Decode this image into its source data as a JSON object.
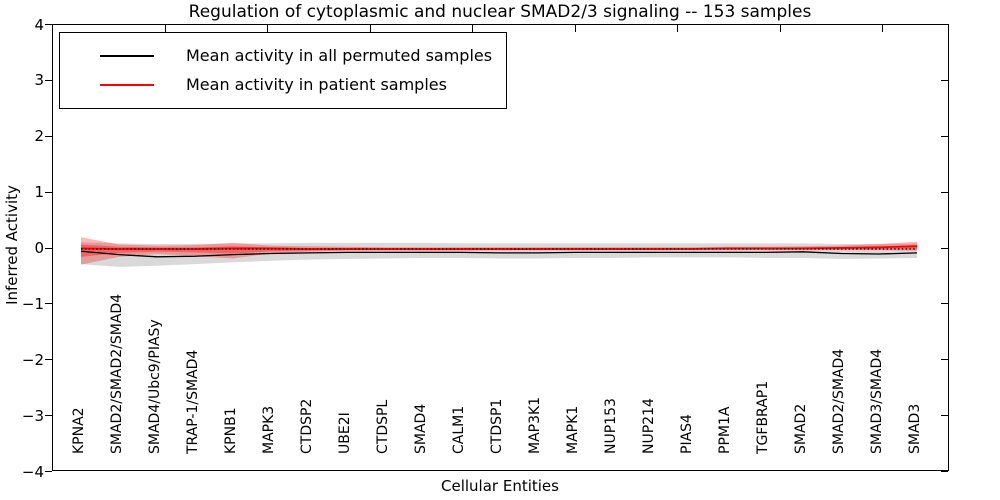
{
  "chart_data": {
    "type": "line",
    "title": "Regulation of cytoplasmic and nuclear SMAD2/3 signaling -- 153 samples",
    "xlabel": "Cellular Entities",
    "ylabel": "Inferred Activity",
    "ylim": [
      -4,
      4
    ],
    "ytick_values": [
      4,
      3,
      2,
      1,
      0,
      -1,
      -2,
      -3,
      -4
    ],
    "ytick_labels": [
      "4",
      "3",
      "2",
      "1",
      "0",
      "−1",
      "−2",
      "−3",
      "−4"
    ],
    "grid": false,
    "legend_position": "upper left",
    "categories": [
      "KPNA2",
      "SMAD2/SMAD2/SMAD4",
      "SMAD4/Ubc9/PIASy",
      "TRAP-1/SMAD4",
      "KPNB1",
      "MAPK3",
      "CTDSP2",
      "UBE2I",
      "CTDSPL",
      "SMAD4",
      "CALM1",
      "CTDSP1",
      "MAP3K1",
      "MAPK1",
      "NUP153",
      "NUP214",
      "PIAS4",
      "PPM1A",
      "TGFBRAP1",
      "SMAD2",
      "SMAD2/SMAD4",
      "SMAD3/SMAD4",
      "SMAD3"
    ],
    "series": [
      {
        "name": "Mean activity in all permuted samples",
        "color": "#000000",
        "line_width": 1.3,
        "values": [
          -0.04,
          -0.1,
          -0.14,
          -0.13,
          -0.1,
          -0.08,
          -0.07,
          -0.06,
          -0.06,
          -0.06,
          -0.06,
          -0.07,
          -0.07,
          -0.06,
          -0.06,
          -0.06,
          -0.06,
          -0.06,
          -0.06,
          -0.05,
          -0.08,
          -0.09,
          -0.07
        ]
      },
      {
        "name": "Mean activity in patient samples",
        "color": "#ff0000",
        "line_width": 1.8,
        "values": [
          0.01,
          0.0,
          0.0,
          0.0,
          0.01,
          0.01,
          0.0,
          0.0,
          0.0,
          0.0,
          0.0,
          0.0,
          0.0,
          0.0,
          0.0,
          0.0,
          0.0,
          0.01,
          0.01,
          0.01,
          0.02,
          0.03,
          0.05
        ]
      }
    ],
    "bands": [
      {
        "name": "permuted-samples-range",
        "color": "rgba(0,0,0,0.15)",
        "upper": [
          0.12,
          0.1,
          0.09,
          0.09,
          0.1,
          0.1,
          0.11,
          0.11,
          0.11,
          0.11,
          0.1,
          0.1,
          0.1,
          0.1,
          0.1,
          0.1,
          0.1,
          0.1,
          0.1,
          0.1,
          0.09,
          0.09,
          0.1
        ],
        "lower": [
          -0.27,
          -0.32,
          -0.3,
          -0.27,
          -0.24,
          -0.21,
          -0.19,
          -0.18,
          -0.17,
          -0.16,
          -0.16,
          -0.17,
          -0.17,
          -0.16,
          -0.16,
          -0.15,
          -0.15,
          -0.15,
          -0.16,
          -0.16,
          -0.18,
          -0.17,
          -0.16
        ]
      },
      {
        "name": "patient-samples-range-outer",
        "color": "rgba(255,0,0,0.28)",
        "upper": [
          0.21,
          0.08,
          0.06,
          0.07,
          0.11,
          0.06,
          0.05,
          0.04,
          0.03,
          0.03,
          0.03,
          0.03,
          0.03,
          0.03,
          0.03,
          0.03,
          0.03,
          0.04,
          0.04,
          0.05,
          0.06,
          0.09,
          0.13
        ],
        "lower": [
          -0.28,
          -0.14,
          -0.09,
          -0.13,
          -0.17,
          -0.08,
          -0.05,
          -0.03,
          -0.03,
          -0.03,
          -0.03,
          -0.02,
          -0.02,
          -0.02,
          -0.02,
          -0.02,
          -0.02,
          -0.02,
          -0.02,
          -0.02,
          -0.02,
          -0.02,
          -0.03
        ]
      },
      {
        "name": "patient-samples-range-inner",
        "color": "rgba(255,0,0,0.35)",
        "upper": [
          0.08,
          0.04,
          0.03,
          0.03,
          0.05,
          0.03,
          0.02,
          0.02,
          0.02,
          0.02,
          0.02,
          0.02,
          0.02,
          0.02,
          0.02,
          0.02,
          0.02,
          0.02,
          0.02,
          0.03,
          0.03,
          0.04,
          0.07
        ],
        "lower": [
          -0.14,
          -0.07,
          -0.05,
          -0.06,
          -0.08,
          -0.04,
          -0.03,
          -0.02,
          -0.02,
          -0.02,
          -0.02,
          -0.02,
          -0.02,
          -0.02,
          -0.02,
          -0.01,
          -0.01,
          -0.01,
          -0.01,
          -0.01,
          -0.01,
          -0.01,
          -0.01
        ]
      }
    ],
    "reference_line": {
      "value": 0,
      "style": "dotted",
      "color": "#000000"
    }
  }
}
